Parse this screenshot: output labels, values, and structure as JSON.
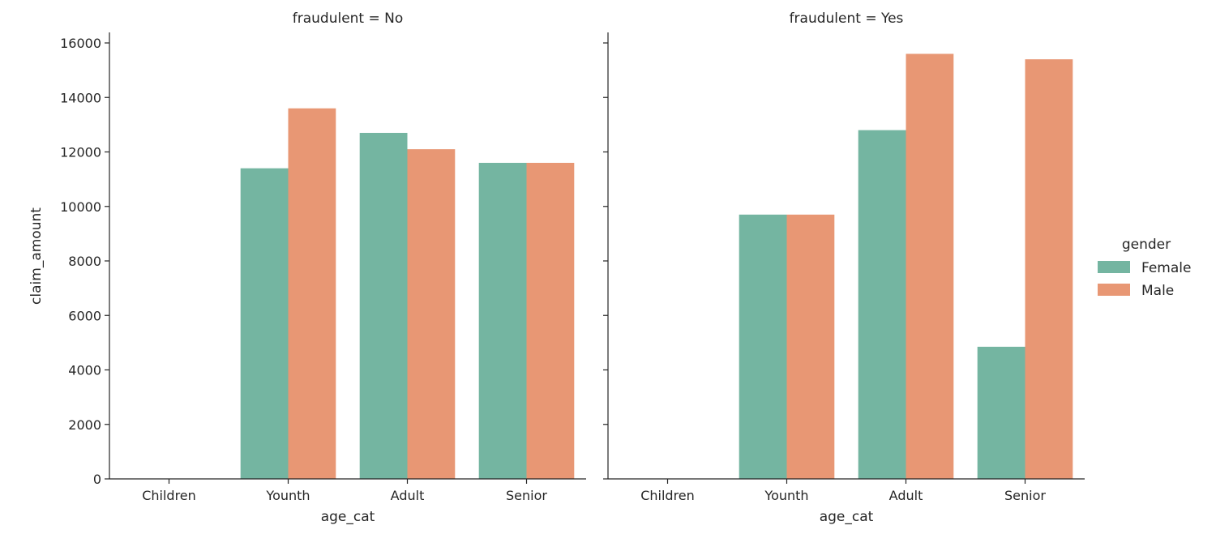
{
  "chart_data": [
    {
      "type": "bar",
      "title": "fraudulent = No",
      "xlabel": "age_cat",
      "ylabel": "claim_amount",
      "categories": [
        "Children",
        "Younth",
        "Adult",
        "Senior"
      ],
      "series": [
        {
          "name": "Female",
          "values": [
            0,
            11400,
            12700,
            11600
          ]
        },
        {
          "name": "Male",
          "values": [
            0,
            13600,
            12100,
            11600
          ]
        }
      ],
      "ylim": [
        0,
        16400
      ],
      "yticks": [
        0,
        2000,
        4000,
        6000,
        8000,
        10000,
        12000,
        14000,
        16000
      ],
      "grid": false
    },
    {
      "type": "bar",
      "title": "fraudulent = Yes",
      "xlabel": "age_cat",
      "ylabel": "",
      "categories": [
        "Children",
        "Younth",
        "Adult",
        "Senior"
      ],
      "series": [
        {
          "name": "Female",
          "values": [
            0,
            9700,
            12800,
            4850
          ]
        },
        {
          "name": "Male",
          "values": [
            0,
            9700,
            15600,
            15400
          ]
        }
      ],
      "ylim": [
        0,
        16400
      ],
      "yticks": [
        0,
        2000,
        4000,
        6000,
        8000,
        10000,
        12000,
        14000,
        16000
      ],
      "grid": false
    }
  ],
  "legend": {
    "title": "gender",
    "placement": "right",
    "entries": [
      {
        "label": "Female",
        "color": "#74b5a1"
      },
      {
        "label": "Male",
        "color": "#e89774"
      }
    ]
  },
  "colors": {
    "Female": "#74b5a1",
    "Male": "#e89774",
    "axis": "#262626"
  }
}
